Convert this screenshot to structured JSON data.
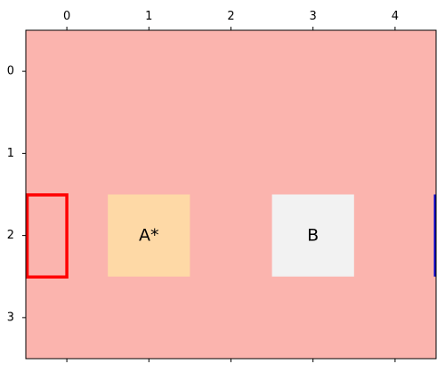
{
  "chart_data": {
    "type": "heatmap",
    "title": "",
    "xlabel": "",
    "ylabel": "",
    "xlim": [
      -0.5,
      4.5
    ],
    "ylim": [
      3.5,
      -0.5
    ],
    "x_ticks": [
      0,
      1,
      2,
      3,
      4
    ],
    "y_ticks": [
      0,
      1,
      2,
      3
    ],
    "x_tick_labels": [
      "0",
      "1",
      "2",
      "3",
      "4"
    ],
    "y_tick_labels": [
      "0",
      "1",
      "2",
      "3"
    ],
    "x_axis_position": "top",
    "y_axis_inverted": true,
    "grid": false,
    "background_color": "#fbb4ae",
    "cells": [
      {
        "col": 1,
        "row": 2,
        "label": "A*",
        "color": "#fed9a6"
      },
      {
        "col": 3,
        "row": 2,
        "label": "B",
        "color": "#f2f2f2"
      }
    ],
    "outlines": [
      {
        "col_start": -0.5,
        "col_end": 0,
        "row_start": 1.5,
        "row_end": 2.5,
        "color": "#ff0000"
      },
      {
        "col_start": 4.5,
        "col_end": 4.5,
        "row_start": 1.5,
        "row_end": 2.5,
        "color": "#0000cc"
      }
    ]
  }
}
